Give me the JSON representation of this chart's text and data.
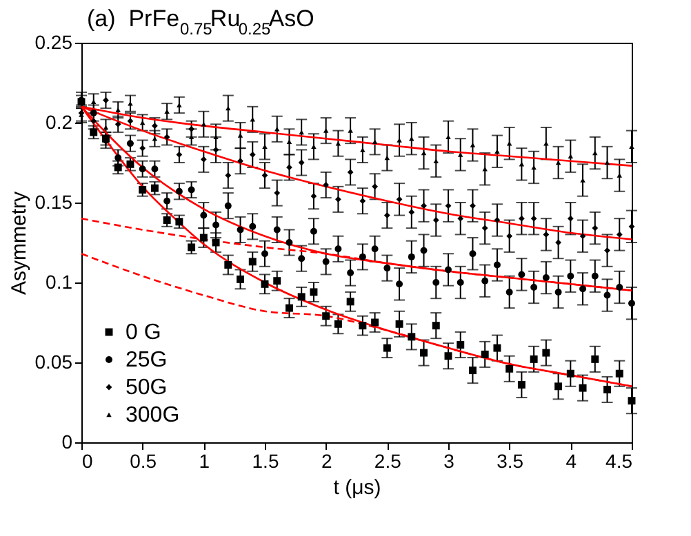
{
  "chart_data": {
    "type": "scatter",
    "title": "(a)  PrFe$_{0.75}$Ru$_{0.25}$AsO",
    "xlabel": "t (μs)",
    "ylabel": "Asymmetry",
    "xlim": [
      0,
      4.5
    ],
    "xticks": [
      0,
      0.5,
      1,
      1.5,
      2,
      2.5,
      3,
      3.5,
      4,
      4.5
    ],
    "ylim": [
      0,
      0.25
    ],
    "yticks": [
      0,
      0.05,
      0.1,
      0.15,
      0.2,
      0.25
    ],
    "grid": false,
    "legend": "bottom left",
    "x": [
      0,
      0.1,
      0.2,
      0.3,
      0.4,
      0.5,
      0.6,
      0.7,
      0.8,
      0.9,
      1,
      1.1,
      1.2,
      1.3,
      1.4,
      1.5,
      1.6,
      1.7,
      1.8,
      1.9,
      2,
      2.1,
      2.2,
      2.3,
      2.4,
      2.5,
      2.6,
      2.7,
      2.8,
      2.9,
      3,
      3.1,
      3.2,
      3.3,
      3.4,
      3.5,
      3.6,
      3.7,
      3.8,
      3.9,
      4,
      4.1,
      4.2,
      4.3,
      4.4,
      4.5
    ],
    "series": [
      {
        "name": "0 G",
        "marker": "square",
        "color": "#000000",
        "values": [
          0.213,
          0.194,
          0.19,
          0.172,
          0.174,
          0.158,
          0.159,
          0.139,
          0.138,
          0.122,
          0.128,
          0.125,
          0.111,
          0.102,
          0.113,
          0.099,
          0.101,
          0.084,
          0.091,
          0.094,
          0.079,
          0.074,
          0.088,
          0.073,
          0.075,
          0.059,
          0.074,
          0.066,
          0.056,
          0.073,
          0.054,
          0.061,
          0.045,
          0.055,
          0.059,
          0.046,
          0.036,
          0.052,
          0.056,
          0.035,
          0.043,
          0.034,
          0.052,
          0.033,
          0.043,
          0.026
        ],
        "errors": [
          0.004,
          0.004,
          0.004,
          0.004,
          0.004,
          0.004,
          0.004,
          0.004,
          0.004,
          0.004,
          0.006,
          0.006,
          0.006,
          0.006,
          0.006,
          0.006,
          0.006,
          0.006,
          0.006,
          0.006,
          0.006,
          0.006,
          0.006,
          0.006,
          0.006,
          0.006,
          0.008,
          0.008,
          0.008,
          0.008,
          0.008,
          0.008,
          0.008,
          0.008,
          0.008,
          0.008,
          0.008,
          0.008,
          0.008,
          0.008,
          0.008,
          0.008,
          0.008,
          0.008,
          0.008,
          0.008
        ]
      },
      {
        "name": "25G",
        "marker": "circle",
        "color": "#000000",
        "values": [
          0.214,
          0.206,
          0.189,
          0.178,
          0.187,
          0.171,
          0.171,
          0.151,
          0.157,
          0.158,
          0.142,
          0.136,
          0.148,
          0.133,
          0.135,
          0.118,
          0.133,
          0.125,
          0.115,
          0.132,
          0.113,
          0.121,
          0.106,
          0.116,
          0.121,
          0.109,
          0.099,
          0.116,
          0.12,
          0.1,
          0.108,
          0.1,
          0.118,
          0.101,
          0.111,
          0.094,
          0.105,
          0.097,
          0.103,
          0.094,
          0.104,
          0.096,
          0.104,
          0.092,
          0.097,
          0.087
        ],
        "errors": [
          0.005,
          0.005,
          0.005,
          0.005,
          0.005,
          0.005,
          0.005,
          0.005,
          0.005,
          0.005,
          0.008,
          0.008,
          0.008,
          0.008,
          0.008,
          0.008,
          0.008,
          0.008,
          0.008,
          0.008,
          0.008,
          0.008,
          0.008,
          0.008,
          0.008,
          0.008,
          0.01,
          0.01,
          0.01,
          0.01,
          0.01,
          0.01,
          0.01,
          0.01,
          0.01,
          0.01,
          0.01,
          0.01,
          0.01,
          0.01,
          0.01,
          0.01,
          0.01,
          0.01,
          0.01,
          0.01
        ]
      },
      {
        "name": "50G",
        "marker": "diamond",
        "color": "#000000",
        "values": [
          0.206,
          0.201,
          0.214,
          0.199,
          0.201,
          0.184,
          0.198,
          0.191,
          0.18,
          0.196,
          0.177,
          0.183,
          0.167,
          0.176,
          0.18,
          0.167,
          0.156,
          0.172,
          0.175,
          0.154,
          0.161,
          0.152,
          0.169,
          0.151,
          0.16,
          0.142,
          0.152,
          0.144,
          0.148,
          0.139,
          0.148,
          0.14,
          0.148,
          0.134,
          0.139,
          0.129,
          0.14,
          0.14,
          0.13,
          0.125,
          0.14,
          0.129,
          0.134,
          0.12,
          0.13,
          0.135
        ],
        "errors": [
          0.005,
          0.005,
          0.005,
          0.005,
          0.005,
          0.005,
          0.005,
          0.005,
          0.005,
          0.005,
          0.008,
          0.008,
          0.008,
          0.008,
          0.008,
          0.008,
          0.008,
          0.008,
          0.008,
          0.008,
          0.008,
          0.008,
          0.008,
          0.008,
          0.008,
          0.008,
          0.01,
          0.01,
          0.01,
          0.01,
          0.01,
          0.01,
          0.01,
          0.01,
          0.01,
          0.01,
          0.01,
          0.01,
          0.01,
          0.01,
          0.01,
          0.01,
          0.01,
          0.01,
          0.01,
          0.01
        ]
      },
      {
        "name": "300G",
        "marker": "triangle",
        "color": "#000000",
        "values": [
          0.205,
          0.213,
          0.197,
          0.208,
          0.212,
          0.2,
          0.19,
          0.207,
          0.211,
          0.191,
          0.199,
          0.191,
          0.209,
          0.192,
          0.202,
          0.185,
          0.196,
          0.188,
          0.194,
          0.185,
          0.195,
          0.187,
          0.195,
          0.183,
          0.188,
          0.178,
          0.189,
          0.19,
          0.181,
          0.176,
          0.191,
          0.18,
          0.186,
          0.171,
          0.182,
          0.187,
          0.174,
          0.172,
          0.187,
          0.175,
          0.179,
          0.164,
          0.181,
          0.175,
          0.167,
          0.185
        ],
        "errors": [
          0.005,
          0.005,
          0.005,
          0.005,
          0.005,
          0.005,
          0.005,
          0.005,
          0.005,
          0.005,
          0.008,
          0.008,
          0.008,
          0.008,
          0.008,
          0.008,
          0.008,
          0.008,
          0.008,
          0.008,
          0.008,
          0.008,
          0.008,
          0.008,
          0.008,
          0.008,
          0.01,
          0.01,
          0.01,
          0.01,
          0.01,
          0.01,
          0.01,
          0.01,
          0.01,
          0.01,
          0.01,
          0.01,
          0.01,
          0.01,
          0.01,
          0.01,
          0.01,
          0.01,
          0.01,
          0.01
        ]
      },
      {
        "type": "line",
        "color": "#ff0000",
        "line_style": "solid",
        "x": [
          0,
          0.25,
          0.5,
          0.75,
          1,
          1.5,
          2,
          2.5,
          3,
          3.5,
          4,
          4.5
        ],
        "values": [
          0.21,
          0.184,
          0.16,
          0.141,
          0.124,
          0.1,
          0.083,
          0.07,
          0.059,
          0.049,
          0.042,
          0.035
        ]
      },
      {
        "type": "line",
        "color": "#ff0000",
        "line_style": "solid",
        "x": [
          0,
          0.5,
          1,
          1.5,
          2,
          2.5,
          3,
          3.5,
          4,
          4.5
        ],
        "values": [
          0.21,
          0.172,
          0.146,
          0.129,
          0.118,
          0.112,
          0.107,
          0.103,
          0.099,
          0.095
        ]
      },
      {
        "type": "line",
        "color": "#ff0000",
        "line_style": "solid",
        "x": [
          0,
          0.5,
          1,
          1.5,
          2,
          2.5,
          3,
          3.5,
          4,
          4.5
        ],
        "values": [
          0.21,
          0.195,
          0.182,
          0.17,
          0.16,
          0.151,
          0.143,
          0.137,
          0.131,
          0.127
        ]
      },
      {
        "type": "line",
        "color": "#ff0000",
        "line_style": "solid",
        "x": [
          0,
          0.5,
          1,
          1.5,
          2,
          2.5,
          3,
          3.5,
          4,
          4.5
        ],
        "values": [
          0.21,
          0.203,
          0.198,
          0.194,
          0.19,
          0.186,
          0.182,
          0.179,
          0.176,
          0.173
        ]
      },
      {
        "type": "line",
        "color": "#ff0000",
        "line_style": "dashed",
        "x": [
          0,
          0.5,
          1,
          1.5,
          2,
          2.5,
          3,
          3.5,
          4,
          4.5
        ],
        "values": [
          0.14,
          0.133,
          0.127,
          0.122,
          0.118,
          0.112,
          0.107,
          0.103,
          0.099,
          0.095
        ]
      },
      {
        "type": "line",
        "color": "#ff0000",
        "line_style": "dashed",
        "x": [
          0,
          0.5,
          1,
          1.5,
          2,
          2.5,
          3,
          3.5,
          4,
          4.5
        ],
        "values": [
          0.118,
          0.104,
          0.092,
          0.082,
          0.079,
          0.07,
          0.059,
          0.049,
          0.042,
          0.035
        ]
      }
    ]
  }
}
